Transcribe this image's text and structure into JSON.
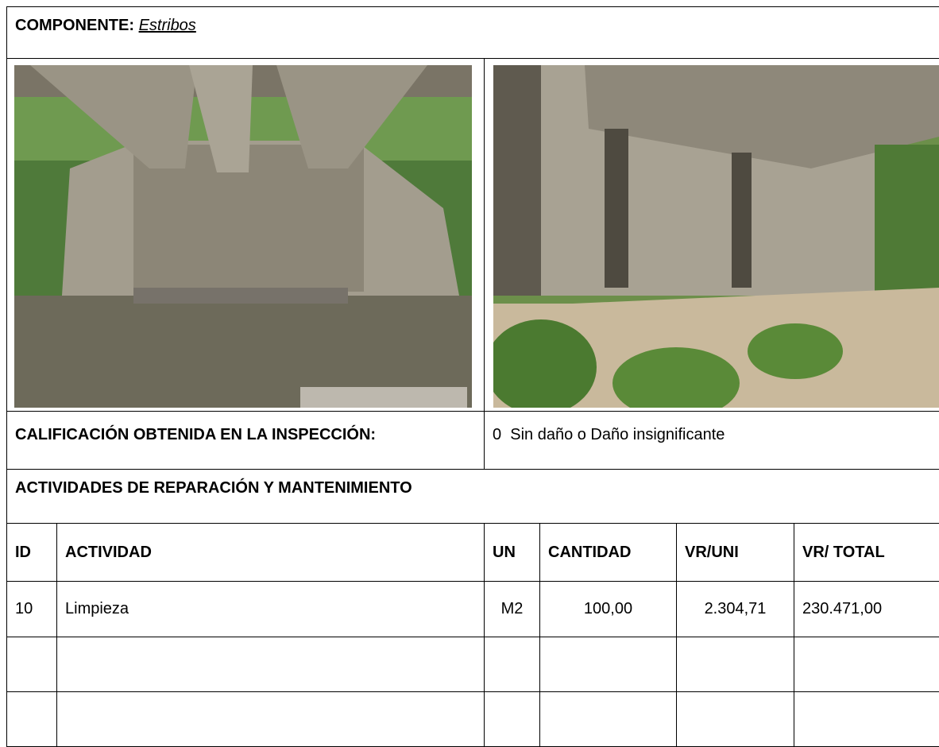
{
  "component": {
    "label": "COMPONENTE:",
    "value": "Estribos"
  },
  "rating": {
    "label": "CALIFICACIÓN OBTENIDA EN LA INSPECCIÓN:",
    "value": "0  Sin daño o Daño insignificante"
  },
  "activities": {
    "title": "ACTIVIDADES DE REPARACIÓN Y MANTENIMIENTO",
    "header": [
      "ID",
      "ACTIVIDAD",
      "UN",
      "CANTIDAD",
      "VR/UNI",
      "VR/ TOTAL"
    ],
    "rows": [
      [
        "10",
        "Limpieza",
        "M2",
        "100,00",
        "2.304,71",
        "230.471,00"
      ]
    ]
  }
}
